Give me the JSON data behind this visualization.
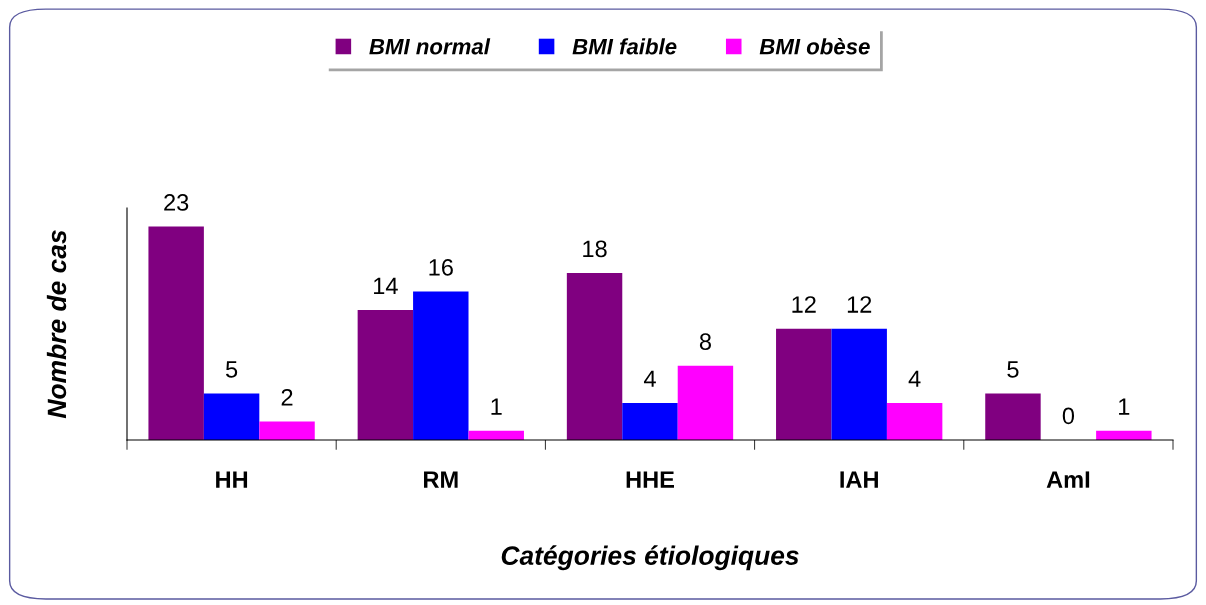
{
  "chart_data": {
    "type": "bar",
    "xlabel": "Catégories étiologiques",
    "ylabel": "Nombre de cas",
    "categories": [
      "HH",
      "RM",
      "HHE",
      "IAH",
      "AmI"
    ],
    "series": [
      {
        "name": "BMI normal",
        "color": "#800080",
        "values": [
          23,
          14,
          18,
          12,
          5
        ]
      },
      {
        "name": "BMI faible",
        "color": "#0000ff",
        "values": [
          5,
          16,
          4,
          12,
          0
        ]
      },
      {
        "name": "BMI obèse",
        "color": "#ff00ff",
        "values": [
          2,
          1,
          8,
          4,
          1
        ]
      }
    ],
    "ylim": [
      0,
      25
    ],
    "data_labels": true,
    "legend": "top",
    "grid": false,
    "tick_labels": "x"
  }
}
